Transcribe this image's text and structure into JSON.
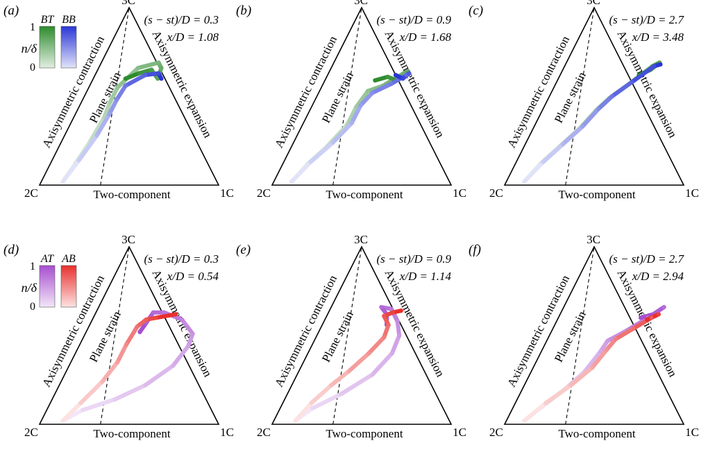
{
  "colors": {
    "BT": "#2e8b2e",
    "BB": "#2a36d6",
    "AT": "#a64fd0",
    "AB": "#e8302e",
    "outline": "#000000"
  },
  "triangle": {
    "vertex_top": "3C",
    "vertex_left": "2C",
    "vertex_right": "1C",
    "left_edge": "Axisymmetric contraction",
    "right_edge": "Axisymmetric expansion",
    "bottom_edge": "Two-component",
    "dashed_line": "Plane strain"
  },
  "colorbar_labels": {
    "max": "1",
    "min": "0",
    "axis": "n/δ"
  },
  "chart_data": [
    {
      "id": "a",
      "panel_label": "(a)",
      "type": "scatter",
      "line1": "(s − st)/D = 0.3",
      "line2": "x/D = 1.08",
      "legend": [
        "BT",
        "BB"
      ],
      "series": [
        {
          "name": "BT",
          "color": "BT",
          "points": [
            [
              0.12,
              0.02
            ],
            [
              0.14,
              0.12
            ],
            [
              0.16,
              0.25
            ],
            [
              0.17,
              0.38
            ],
            [
              0.16,
              0.47
            ],
            [
              0.16,
              0.55
            ],
            [
              0.22,
              0.66
            ],
            [
              0.32,
              0.69
            ],
            [
              0.35,
              0.66
            ],
            [
              0.36,
              0.6
            ],
            [
              0.3,
              0.65
            ],
            [
              0.24,
              0.63
            ],
            [
              0.18,
              0.6
            ]
          ]
        },
        {
          "name": "BB",
          "color": "BB",
          "points": [
            [
              0.12,
              0.02
            ],
            [
              0.15,
              0.14
            ],
            [
              0.18,
              0.28
            ],
            [
              0.19,
              0.4
            ],
            [
              0.19,
              0.48
            ],
            [
              0.2,
              0.56
            ],
            [
              0.28,
              0.62
            ],
            [
              0.35,
              0.63
            ],
            [
              0.38,
              0.6
            ]
          ]
        }
      ]
    },
    {
      "id": "b",
      "panel_label": "(b)",
      "type": "scatter",
      "line1": "(s − st)/D = 0.9",
      "line2": "x/D = 1.68",
      "legend": [],
      "series": [
        {
          "name": "BT",
          "color": "BT",
          "points": [
            [
              0.1,
              0.02
            ],
            [
              0.14,
              0.12
            ],
            [
              0.2,
              0.22
            ],
            [
              0.25,
              0.34
            ],
            [
              0.25,
              0.44
            ],
            [
              0.27,
              0.53
            ],
            [
              0.34,
              0.56
            ],
            [
              0.42,
              0.63
            ],
            [
              0.44,
              0.64
            ],
            [
              0.4,
              0.59
            ],
            [
              0.34,
              0.61
            ],
            [
              0.28,
              0.59
            ]
          ]
        },
        {
          "name": "BB",
          "color": "BB",
          "points": [
            [
              0.1,
              0.02
            ],
            [
              0.15,
              0.13
            ],
            [
              0.22,
              0.24
            ],
            [
              0.27,
              0.35
            ],
            [
              0.27,
              0.45
            ],
            [
              0.3,
              0.52
            ],
            [
              0.38,
              0.57
            ],
            [
              0.44,
              0.62
            ],
            [
              0.45,
              0.63
            ],
            [
              0.43,
              0.6
            ],
            [
              0.38,
              0.62
            ]
          ]
        }
      ]
    },
    {
      "id": "c",
      "panel_label": "(c)",
      "type": "scatter",
      "line1": "(s − st)/D = 2.7",
      "line2": "x/D = 3.48",
      "legend": [],
      "series": [
        {
          "name": "BT",
          "color": "BT",
          "points": [
            [
              0.1,
              0.02
            ],
            [
              0.14,
              0.12
            ],
            [
              0.2,
              0.22
            ],
            [
              0.26,
              0.32
            ],
            [
              0.3,
              0.42
            ],
            [
              0.34,
              0.49
            ],
            [
              0.41,
              0.57
            ],
            [
              0.49,
              0.67
            ],
            [
              0.52,
              0.69
            ],
            [
              0.49,
              0.65
            ],
            [
              0.44,
              0.62
            ]
          ]
        },
        {
          "name": "BB",
          "color": "BB",
          "points": [
            [
              0.1,
              0.02
            ],
            [
              0.15,
              0.13
            ],
            [
              0.21,
              0.23
            ],
            [
              0.27,
              0.33
            ],
            [
              0.31,
              0.43
            ],
            [
              0.35,
              0.5
            ],
            [
              0.42,
              0.58
            ],
            [
              0.5,
              0.67
            ],
            [
              0.53,
              0.68
            ]
          ]
        }
      ]
    },
    {
      "id": "d",
      "panel_label": "(d)",
      "type": "scatter",
      "line1": "(s − st)/D = 0.3",
      "line2": "x/D = 0.54",
      "legend": [
        "AT",
        "AB"
      ],
      "series": [
        {
          "name": "AT",
          "color": "AT",
          "points": [
            [
              0.12,
              0.02
            ],
            [
              0.2,
              0.08
            ],
            [
              0.35,
              0.14
            ],
            [
              0.48,
              0.22
            ],
            [
              0.58,
              0.33
            ],
            [
              0.61,
              0.44
            ],
            [
              0.6,
              0.51
            ],
            [
              0.5,
              0.59
            ],
            [
              0.38,
              0.63
            ],
            [
              0.32,
              0.63
            ],
            [
              0.31,
              0.57
            ],
            [
              0.3,
              0.52
            ]
          ]
        },
        {
          "name": "AB",
          "color": "AB",
          "points": [
            [
              0.12,
              0.02
            ],
            [
              0.17,
              0.12
            ],
            [
              0.23,
              0.24
            ],
            [
              0.26,
              0.35
            ],
            [
              0.26,
              0.45
            ],
            [
              0.27,
              0.55
            ],
            [
              0.3,
              0.59
            ],
            [
              0.35,
              0.6
            ],
            [
              0.45,
              0.62
            ]
          ]
        }
      ]
    },
    {
      "id": "e",
      "panel_label": "(e)",
      "type": "scatter",
      "line1": "(s − st)/D = 0.9",
      "line2": "x/D = 1.14",
      "legend": [],
      "series": [
        {
          "name": "AT",
          "color": "AT",
          "points": [
            [
              0.12,
              0.02
            ],
            [
              0.18,
              0.09
            ],
            [
              0.3,
              0.17
            ],
            [
              0.42,
              0.28
            ],
            [
              0.47,
              0.4
            ],
            [
              0.46,
              0.5
            ],
            [
              0.41,
              0.58
            ],
            [
              0.34,
              0.65
            ],
            [
              0.28,
              0.66
            ],
            [
              0.33,
              0.62
            ],
            [
              0.36,
              0.56
            ]
          ]
        },
        {
          "name": "AB",
          "color": "AB",
          "points": [
            [
              0.12,
              0.02
            ],
            [
              0.16,
              0.12
            ],
            [
              0.22,
              0.22
            ],
            [
              0.28,
              0.3
            ],
            [
              0.34,
              0.4
            ],
            [
              0.38,
              0.49
            ],
            [
              0.37,
              0.56
            ],
            [
              0.32,
              0.61
            ],
            [
              0.36,
              0.63
            ],
            [
              0.4,
              0.64
            ]
          ]
        }
      ]
    },
    {
      "id": "f",
      "panel_label": "(f)",
      "type": "scatter",
      "line1": "(s − st)/D = 2.7",
      "line2": "x/D = 2.94",
      "legend": [],
      "series": [
        {
          "name": "AT",
          "color": "AT",
          "points": [
            [
              0.1,
              0.02
            ],
            [
              0.16,
              0.1
            ],
            [
              0.24,
              0.2
            ],
            [
              0.3,
              0.3
            ],
            [
              0.33,
              0.41
            ],
            [
              0.34,
              0.47
            ],
            [
              0.42,
              0.53
            ],
            [
              0.5,
              0.6
            ],
            [
              0.56,
              0.66
            ],
            [
              0.52,
              0.62
            ],
            [
              0.46,
              0.6
            ]
          ]
        },
        {
          "name": "AB",
          "color": "AB",
          "points": [
            [
              0.1,
              0.02
            ],
            [
              0.17,
              0.12
            ],
            [
              0.26,
              0.22
            ],
            [
              0.33,
              0.32
            ],
            [
              0.36,
              0.42
            ],
            [
              0.38,
              0.48
            ],
            [
              0.45,
              0.54
            ],
            [
              0.52,
              0.6
            ],
            [
              0.55,
              0.62
            ],
            [
              0.5,
              0.59
            ]
          ]
        }
      ]
    }
  ]
}
